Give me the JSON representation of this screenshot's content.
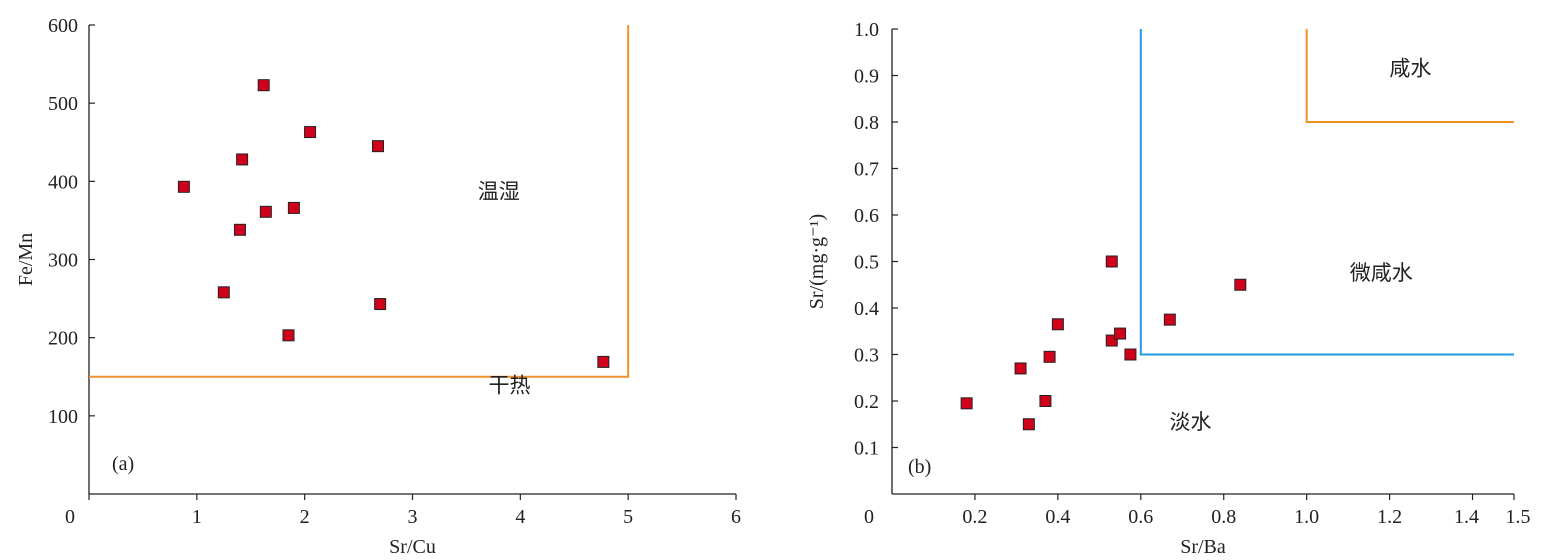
{
  "chart_data": [
    {
      "type": "scatter",
      "panel_label": "(a)",
      "xlabel": "Sr/Cu",
      "ylabel": "Fe/Mn",
      "xlim": [
        0,
        6
      ],
      "ylim": [
        0,
        600
      ],
      "x_ticks": [
        0,
        1,
        2,
        3,
        4,
        5,
        6
      ],
      "y_ticks": [
        100,
        200,
        300,
        400,
        500,
        600
      ],
      "points": [
        {
          "x": 1.62,
          "y": 523
        },
        {
          "x": 2.05,
          "y": 463
        },
        {
          "x": 2.68,
          "y": 445
        },
        {
          "x": 1.42,
          "y": 428
        },
        {
          "x": 0.88,
          "y": 393
        },
        {
          "x": 1.9,
          "y": 366
        },
        {
          "x": 1.64,
          "y": 361
        },
        {
          "x": 1.4,
          "y": 338
        },
        {
          "x": 1.25,
          "y": 258
        },
        {
          "x": 2.7,
          "y": 243
        },
        {
          "x": 1.85,
          "y": 203
        },
        {
          "x": 4.77,
          "y": 169
        }
      ],
      "boundary": [
        [
          0,
          150
        ],
        [
          5,
          150
        ],
        [
          5,
          600
        ]
      ],
      "boundary_color": "#f0922b",
      "marker_color": "#d0021b",
      "annotations": [
        {
          "text": "温湿",
          "x": 3.8,
          "y": 378
        },
        {
          "text": "干热",
          "x": 3.9,
          "y": 130
        }
      ]
    },
    {
      "type": "scatter",
      "panel_label": "(b)",
      "xlabel": "Sr/Ba",
      "ylabel": "Sr/(mg·g⁻¹)",
      "xlim": [
        0,
        1.5
      ],
      "ylim": [
        0,
        1.0
      ],
      "x_ticks": [
        "0.2",
        "0.4",
        "0.6",
        "0.8",
        "1.0",
        "1.2",
        "1.4",
        "1.5"
      ],
      "y_ticks": [
        "0.1",
        "0.2",
        "0.3",
        "0.4",
        "0.5",
        "0.6",
        "0.7",
        "0.8",
        "0.9",
        "1.0"
      ],
      "origin_label": "0",
      "points": [
        {
          "x": 0.18,
          "y": 0.195
        },
        {
          "x": 0.31,
          "y": 0.27
        },
        {
          "x": 0.33,
          "y": 0.15
        },
        {
          "x": 0.37,
          "y": 0.2
        },
        {
          "x": 0.38,
          "y": 0.295
        },
        {
          "x": 0.4,
          "y": 0.365
        },
        {
          "x": 0.53,
          "y": 0.5
        },
        {
          "x": 0.53,
          "y": 0.33
        },
        {
          "x": 0.55,
          "y": 0.345
        },
        {
          "x": 0.575,
          "y": 0.3
        },
        {
          "x": 0.67,
          "y": 0.375
        },
        {
          "x": 0.84,
          "y": 0.45
        }
      ],
      "boundaries": [
        {
          "points": [
            [
              0.6,
              1.0
            ],
            [
              0.6,
              0.3
            ],
            [
              1.5,
              0.3
            ]
          ],
          "color": "#1e9be0"
        },
        {
          "points": [
            [
              1.0,
              1.0
            ],
            [
              1.0,
              0.8
            ],
            [
              1.5,
              0.8
            ]
          ],
          "color": "#f0922b"
        }
      ],
      "marker_color": "#d0021b",
      "annotations": [
        {
          "text": "咸水",
          "x": 1.25,
          "y": 0.9
        },
        {
          "text": "微咸水",
          "x": 1.18,
          "y": 0.46
        },
        {
          "text": "淡水",
          "x": 0.72,
          "y": 0.14
        }
      ]
    }
  ]
}
